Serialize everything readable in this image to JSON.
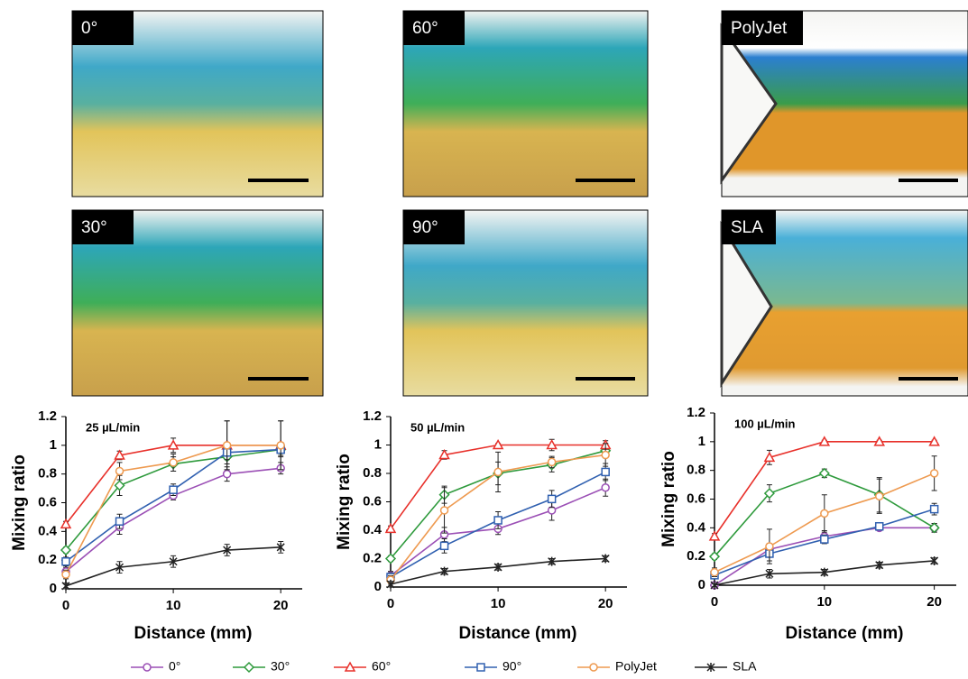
{
  "panels": [
    {
      "label": "0°"
    },
    {
      "label": "30°"
    },
    {
      "label": "60°"
    },
    {
      "label": "90°"
    },
    {
      "label": "PolyJet"
    },
    {
      "label": "SLA"
    }
  ],
  "chart_data": [
    {
      "type": "line",
      "annotation": "25 µL/min",
      "x_label": "Distance (mm)",
      "y_label": "Mixing ratio",
      "x": [
        0,
        5,
        10,
        15,
        20
      ],
      "xlim": [
        0,
        22
      ],
      "xticks": [
        0,
        10,
        20
      ],
      "ylim": [
        0,
        1.2
      ],
      "yticks": [
        0,
        0.2,
        0.4,
        0.6,
        0.8,
        1,
        1.2
      ],
      "series": [
        {
          "name": "0°",
          "color": "#9b4fb5",
          "marker": "circle",
          "values": [
            0.12,
            0.43,
            0.65,
            0.8,
            0.84
          ],
          "errors": [
            0.03,
            0.05,
            0.03,
            0.05,
            0.04
          ]
        },
        {
          "name": "30°",
          "color": "#2e9a3c",
          "marker": "diamond",
          "values": [
            0.27,
            0.72,
            0.87,
            0.92,
            0.97
          ],
          "errors": [
            0.02,
            0.07,
            0.05,
            0.05,
            0.04
          ]
        },
        {
          "name": "60°",
          "color": "#e8302a",
          "marker": "triangle",
          "values": [
            0.45,
            0.93,
            1,
            1,
            1
          ],
          "errors": [
            0.02,
            0.03,
            0.05,
            0.17,
            0.17
          ]
        },
        {
          "name": "90°",
          "color": "#3060b0",
          "marker": "square",
          "values": [
            0.19,
            0.47,
            0.69,
            0.95,
            0.97
          ],
          "errors": [
            0.03,
            0.05,
            0.04,
            0.05,
            0.05
          ]
        },
        {
          "name": "PolyJet",
          "color": "#ee9a50",
          "marker": "circle",
          "values": [
            0.1,
            0.82,
            0.88,
            1,
            1
          ],
          "errors": [
            0.03,
            0.06,
            0.06,
            0.17,
            0.17
          ]
        },
        {
          "name": "SLA",
          "color": "#222222",
          "marker": "star",
          "values": [
            0.02,
            0.15,
            0.19,
            0.27,
            0.29
          ],
          "errors": [
            0.02,
            0.04,
            0.04,
            0.04,
            0.04
          ]
        }
      ]
    },
    {
      "type": "line",
      "annotation": "50 µL/min",
      "x_label": "Distance (mm)",
      "y_label": "Mixing ratio",
      "x": [
        0,
        5,
        10,
        15,
        20
      ],
      "xlim": [
        0,
        22
      ],
      "xticks": [
        0,
        10,
        20
      ],
      "ylim": [
        0,
        1.2
      ],
      "yticks": [
        0,
        0.2,
        0.4,
        0.6,
        0.8,
        1,
        1.2
      ],
      "series": [
        {
          "color": "#9b4fb5",
          "marker": "circle",
          "values": [
            0.08,
            0.37,
            0.41,
            0.54,
            0.7
          ],
          "errors": [
            0.03,
            0.05,
            0.04,
            0.07,
            0.06
          ]
        },
        {
          "color": "#2e9a3c",
          "marker": "diamond",
          "values": [
            0.2,
            0.65,
            0.8,
            0.86,
            0.96
          ],
          "errors": [
            0.02,
            0.06,
            0.08,
            0.05,
            0.05
          ]
        },
        {
          "color": "#e8302a",
          "marker": "triangle",
          "values": [
            0.41,
            0.93,
            1,
            1,
            1
          ],
          "errors": [
            0.02,
            0.03,
            0.01,
            0.04,
            0.03
          ]
        },
        {
          "color": "#3060b0",
          "marker": "square",
          "values": [
            0.07,
            0.29,
            0.47,
            0.62,
            0.81
          ],
          "errors": [
            0.03,
            0.05,
            0.06,
            0.06,
            0.06
          ]
        },
        {
          "color": "#ee9a50",
          "marker": "circle",
          "values": [
            0.05,
            0.54,
            0.81,
            0.88,
            0.93
          ],
          "errors": [
            0.03,
            0.16,
            0.14,
            0.04,
            0.08
          ]
        },
        {
          "color": "#222222",
          "marker": "star",
          "values": [
            0.02,
            0.11,
            0.14,
            0.18,
            0.2
          ],
          "errors": [
            0.02,
            0.02,
            0.02,
            0.02,
            0.02
          ]
        }
      ]
    },
    {
      "type": "line",
      "annotation": "100 µL/min",
      "x_label": "Distance (mm)",
      "y_label": "Mixing ratio",
      "x": [
        0,
        5,
        10,
        15,
        20
      ],
      "xlim": [
        0,
        22
      ],
      "xticks": [
        0,
        10,
        20
      ],
      "ylim": [
        0,
        1.2
      ],
      "yticks": [
        0,
        0.2,
        0.4,
        0.6,
        0.8,
        1,
        1.2
      ],
      "series": [
        {
          "color": "#9b4fb5",
          "marker": "circle",
          "values": [
            0,
            0.25,
            0.34,
            0.4,
            0.4
          ],
          "errors": [
            0.02,
            0.04,
            0.04,
            0.02,
            0.03
          ]
        },
        {
          "color": "#2e9a3c",
          "marker": "diamond",
          "values": [
            0.2,
            0.64,
            0.78,
            0.63,
            0.4
          ],
          "errors": [
            0.02,
            0.06,
            0.03,
            0.12,
            0.03
          ]
        },
        {
          "color": "#e8302a",
          "marker": "triangle",
          "values": [
            0.34,
            0.89,
            1,
            1,
            1
          ],
          "errors": [
            0.02,
            0.05,
            0.01,
            0.01,
            0.01
          ]
        },
        {
          "color": "#3060b0",
          "marker": "square",
          "values": [
            0.07,
            0.22,
            0.32,
            0.41,
            0.53
          ],
          "errors": [
            0.02,
            0.05,
            0.03,
            0.02,
            0.04
          ]
        },
        {
          "color": "#ee9a50",
          "marker": "circle",
          "values": [
            0.09,
            0.27,
            0.5,
            0.62,
            0.78
          ],
          "errors": [
            0.03,
            0.12,
            0.13,
            0.12,
            0.12
          ]
        },
        {
          "color": "#222222",
          "marker": "star",
          "values": [
            0,
            0.08,
            0.09,
            0.14,
            0.17
          ],
          "errors": [
            0.01,
            0.03,
            0.02,
            0.02,
            0.02
          ]
        }
      ]
    }
  ]
}
